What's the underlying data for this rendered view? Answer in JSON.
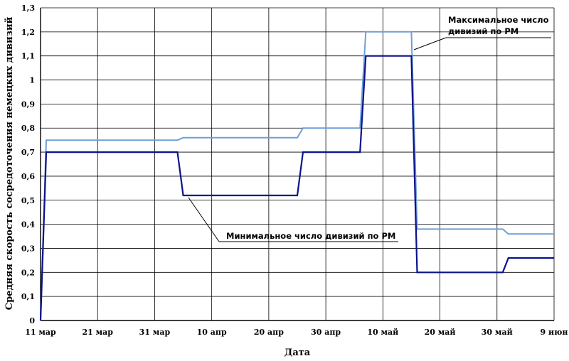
{
  "chart_data": {
    "type": "line",
    "xlabel": "Дата",
    "ylabel": "Средняя скорость сосредоточения немецких дивизий",
    "ylim": [
      0,
      1.3
    ],
    "y_ticks": [
      "0",
      "0,1",
      "0,2",
      "0,3",
      "0,4",
      "0,5",
      "0,6",
      "0,7",
      "0,8",
      "0,9",
      "1",
      "1,1",
      "1,2",
      "1,3"
    ],
    "x_ticks": [
      "11 мар",
      "21 мар",
      "31 мар",
      "10 апр",
      "20 апр",
      "30 апр",
      "10 май",
      "20 май",
      "30 май",
      "9 июн"
    ],
    "grid": true,
    "colors": {
      "max": "#6f9fd8",
      "min": "#0a128c"
    },
    "series": [
      {
        "key": "max",
        "name": "Максимальное число дивизий по РМ",
        "name_lines": [
          "Максимальное число",
          "дивизий по РМ"
        ],
        "points": [
          [
            "11 мар",
            0
          ],
          [
            "12 мар",
            0.75
          ],
          [
            "4 апр",
            0.75
          ],
          [
            "5 апр",
            0.76
          ],
          [
            "25 апр",
            0.76
          ],
          [
            "26 апр",
            0.8
          ],
          [
            "6 май",
            0.8
          ],
          [
            "7 май",
            1.2
          ],
          [
            "15 май",
            1.2
          ],
          [
            "16 май",
            0.38
          ],
          [
            "31 май",
            0.38
          ],
          [
            "1 июн",
            0.36
          ],
          [
            "9 июн",
            0.36
          ]
        ]
      },
      {
        "key": "min",
        "name": "Минимальное число дивизий по РМ",
        "name_lines": [
          "Минимальное число дивизий по РМ"
        ],
        "points": [
          [
            "11 мар",
            0
          ],
          [
            "12 мар",
            0.7
          ],
          [
            "4 апр",
            0.7
          ],
          [
            "5 апр",
            0.52
          ],
          [
            "25 апр",
            0.52
          ],
          [
            "26 апр",
            0.7
          ],
          [
            "6 май",
            0.7
          ],
          [
            "7 май",
            1.1
          ],
          [
            "15 май",
            1.1
          ],
          [
            "16 май",
            0.2
          ],
          [
            "31 май",
            0.2
          ],
          [
            "1 июн",
            0.26
          ],
          [
            "9 июн",
            0.26
          ]
        ]
      }
    ]
  }
}
